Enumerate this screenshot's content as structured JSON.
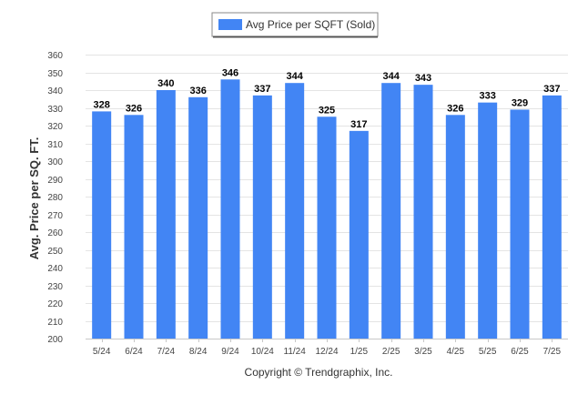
{
  "chart_data": {
    "type": "bar",
    "categories": [
      "5/24",
      "6/24",
      "7/24",
      "8/24",
      "9/24",
      "10/24",
      "11/24",
      "12/24",
      "1/25",
      "2/25",
      "3/25",
      "4/25",
      "5/25",
      "6/25",
      "7/25"
    ],
    "series": [
      {
        "name": "Avg Price per SQFT (Sold)",
        "values": [
          328,
          326,
          340,
          336,
          346,
          337,
          344,
          325,
          317,
          344,
          343,
          326,
          333,
          329,
          337
        ],
        "color": "#4285f4"
      }
    ],
    "title": "",
    "xlabel": "",
    "ylabel": "Avg. Price per SQ. FT.",
    "ylim": [
      200,
      360
    ],
    "yticks": [
      200,
      210,
      220,
      230,
      240,
      250,
      260,
      270,
      280,
      290,
      300,
      310,
      320,
      330,
      340,
      350,
      360
    ],
    "grid": true,
    "legend_position": "top-center",
    "data_labels": true
  },
  "footer": {
    "copyright": "Copyright © Trendgraphix, Inc."
  }
}
